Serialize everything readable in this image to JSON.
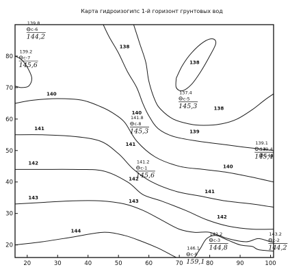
{
  "title": "Карта гидроизогипс 1-й горизонт грунтовых вод",
  "axes": {
    "x_ticks": [
      20,
      30,
      40,
      50,
      60,
      70,
      80,
      90,
      100
    ],
    "y_ticks": [
      20,
      30,
      40,
      50,
      60,
      70,
      80
    ],
    "xlim": [
      16,
      101
    ],
    "ylim": [
      16,
      90
    ]
  },
  "contours": [
    {
      "label": "138",
      "points": [
        [
          55,
          90
        ],
        [
          57,
          84
        ],
        [
          59,
          78
        ],
        [
          60,
          72
        ],
        [
          62,
          66
        ],
        [
          64,
          63
        ],
        [
          68,
          60
        ],
        [
          73,
          58.5
        ],
        [
          78,
          58
        ],
        [
          84,
          58.5
        ],
        [
          89,
          60
        ],
        [
          94,
          63
        ],
        [
          98,
          66
        ],
        [
          101,
          68
        ]
      ]
    },
    {
      "label": "138",
      "points": [
        [
          69,
          73
        ],
        [
          71,
          77
        ],
        [
          74,
          81
        ],
        [
          78,
          84.5
        ],
        [
          81,
          85.5
        ],
        [
          82,
          84
        ],
        [
          80,
          80
        ],
        [
          77,
          75
        ],
        [
          74,
          71
        ],
        [
          71,
          69
        ],
        [
          69,
          70
        ],
        [
          69,
          73
        ]
      ]
    },
    {
      "label": "139",
      "points": [
        [
          45,
          90
        ],
        [
          47,
          86
        ],
        [
          50,
          81
        ],
        [
          53,
          75
        ],
        [
          56,
          70
        ],
        [
          58,
          65
        ],
        [
          60,
          61
        ],
        [
          63,
          57
        ],
        [
          68,
          54.5
        ],
        [
          76,
          53
        ],
        [
          84,
          52
        ],
        [
          92,
          51
        ],
        [
          101,
          50
        ]
      ]
    },
    {
      "label": "139",
      "points": [
        [
          16,
          80
        ],
        [
          18,
          79
        ],
        [
          20,
          76.5
        ],
        [
          21.5,
          73
        ],
        [
          20.5,
          70.5
        ],
        [
          18,
          70
        ],
        [
          16,
          70.5
        ]
      ]
    },
    {
      "label": "140",
      "points": [
        [
          16,
          65
        ],
        [
          22,
          66
        ],
        [
          30,
          66.5
        ],
        [
          38,
          66
        ],
        [
          44,
          64
        ],
        [
          48,
          62
        ],
        [
          52,
          59
        ],
        [
          56,
          53
        ],
        [
          62,
          48
        ],
        [
          70,
          45
        ],
        [
          78,
          44
        ],
        [
          86,
          43
        ],
        [
          94,
          41.5
        ],
        [
          101,
          40
        ]
      ]
    },
    {
      "label": "141",
      "points": [
        [
          16,
          55
        ],
        [
          25,
          55
        ],
        [
          35,
          54.5
        ],
        [
          44,
          53
        ],
        [
          50,
          49
        ],
        [
          55,
          44
        ],
        [
          61,
          40
        ],
        [
          69,
          37
        ],
        [
          77,
          35.5
        ],
        [
          85,
          34
        ],
        [
          94,
          33
        ],
        [
          101,
          32
        ]
      ]
    },
    {
      "label": "142",
      "points": [
        [
          16,
          44
        ],
        [
          25,
          44
        ],
        [
          35,
          44
        ],
        [
          45,
          43.5
        ],
        [
          53,
          40
        ],
        [
          58,
          36
        ],
        [
          64,
          34
        ],
        [
          72,
          31
        ],
        [
          79,
          28
        ],
        [
          86,
          26
        ],
        [
          94,
          25
        ],
        [
          101,
          25
        ]
      ]
    },
    {
      "label": "143",
      "points": [
        [
          16,
          33
        ],
        [
          25,
          33.5
        ],
        [
          35,
          34
        ],
        [
          44,
          34
        ],
        [
          52,
          33
        ],
        [
          58,
          31
        ],
        [
          64,
          28
        ],
        [
          70,
          25
        ],
        [
          75,
          24
        ],
        [
          80,
          24
        ],
        [
          86,
          22
        ],
        [
          92,
          21
        ],
        [
          96,
          22
        ],
        [
          100,
          21
        ],
        [
          101,
          21
        ]
      ]
    },
    {
      "label": "144",
      "points": [
        [
          16,
          20
        ],
        [
          25,
          21
        ],
        [
          35,
          22.5
        ],
        [
          45,
          24
        ],
        [
          52,
          23
        ],
        [
          58,
          21
        ],
        [
          63,
          19
        ],
        [
          67,
          17
        ],
        [
          69,
          16
        ]
      ]
    },
    {
      "label": "",
      "points": [
        [
          75,
          16
        ],
        [
          77,
          19
        ],
        [
          79,
          22
        ],
        [
          82,
          23
        ],
        [
          86,
          21.5
        ],
        [
          90,
          20
        ],
        [
          94,
          19.5
        ],
        [
          96,
          18.5
        ],
        [
          101,
          18
        ]
      ]
    }
  ],
  "contour_labels": [
    {
      "text": "138",
      "x": 52,
      "y": 83
    },
    {
      "text": "138",
      "x": 75,
      "y": 78
    },
    {
      "text": "138",
      "x": 83,
      "y": 63.5
    },
    {
      "text": "139",
      "x": 75,
      "y": 56
    },
    {
      "text": "140",
      "x": 28,
      "y": 68
    },
    {
      "text": "140",
      "x": 56,
      "y": 62
    },
    {
      "text": "140",
      "x": 86,
      "y": 45
    },
    {
      "text": "141",
      "x": 24,
      "y": 57
    },
    {
      "text": "141",
      "x": 54,
      "y": 52
    },
    {
      "text": "141",
      "x": 80,
      "y": 37
    },
    {
      "text": "142",
      "x": 22,
      "y": 46
    },
    {
      "text": "142",
      "x": 55,
      "y": 41
    },
    {
      "text": "142",
      "x": 84,
      "y": 29
    },
    {
      "text": "143",
      "x": 22,
      "y": 35
    },
    {
      "text": "143",
      "x": 55,
      "y": 34
    },
    {
      "text": "144",
      "x": 36,
      "y": 24.5
    }
  ],
  "wells": [
    {
      "name": "с-6",
      "level": "139.8",
      "hand": "144,2",
      "x": 20,
      "y": 88
    },
    {
      "name": "с-7",
      "level": "139.2",
      "hand": "145,6",
      "x": 17.5,
      "y": 79
    },
    {
      "name": "с-5",
      "level": "137.4",
      "hand": "145,3",
      "x": 70,
      "y": 66
    },
    {
      "name": "с-8",
      "level": "141.8",
      "hand": "145,3",
      "x": 54,
      "y": 58
    },
    {
      "name": "с-4",
      "level": "139.1",
      "hand": "145,4",
      "x": 95,
      "y": 50
    },
    {
      "name": "с-4а",
      "level": "139.4",
      "hand": "",
      "x": 96.5,
      "y": 48
    },
    {
      "name": "с-1",
      "level": "141.2",
      "hand": "145,6",
      "x": 56,
      "y": 44
    },
    {
      "name": "с-3",
      "level": "142.2",
      "hand": "144,8",
      "x": 80,
      "y": 21
    },
    {
      "name": "с-2",
      "level": "143.2",
      "hand": "144,2",
      "x": 99.5,
      "y": 21
    },
    {
      "name": "с-9",
      "level": "146.1",
      "hand": "159,1",
      "x": 72.5,
      "y": 16.5
    }
  ]
}
